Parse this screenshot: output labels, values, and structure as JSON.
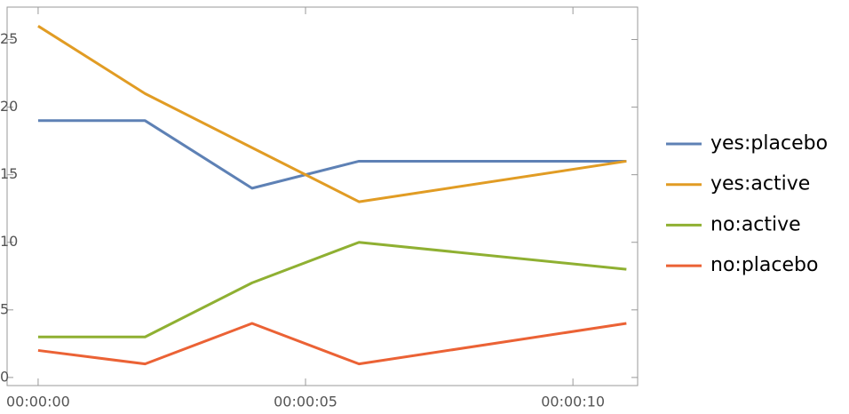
{
  "chart_data": {
    "type": "line",
    "x": [
      0,
      2,
      4,
      6,
      11
    ],
    "xlim": [
      -0.58,
      11.21
    ],
    "xticks": [
      {
        "value": 0,
        "label": "00:00:00"
      },
      {
        "value": 5,
        "label": "00:00:05"
      },
      {
        "value": 10,
        "label": "00:00:10"
      }
    ],
    "ylim": [
      -0.6,
      27.4
    ],
    "yticks": [
      0,
      5,
      10,
      15,
      20,
      25
    ],
    "legend": "right",
    "series": [
      {
        "name": "yes:placebo",
        "color": "#5e81b5",
        "values": [
          19,
          19,
          14,
          16,
          16
        ]
      },
      {
        "name": "yes:active",
        "color": "#e19c24",
        "values": [
          26,
          21,
          17,
          13,
          16
        ]
      },
      {
        "name": "no:active",
        "color": "#8fb032",
        "values": [
          3,
          3,
          7,
          10,
          8
        ]
      },
      {
        "name": "no:placebo",
        "color": "#eb6235",
        "values": [
          2,
          1,
          4,
          1,
          4
        ]
      }
    ]
  }
}
